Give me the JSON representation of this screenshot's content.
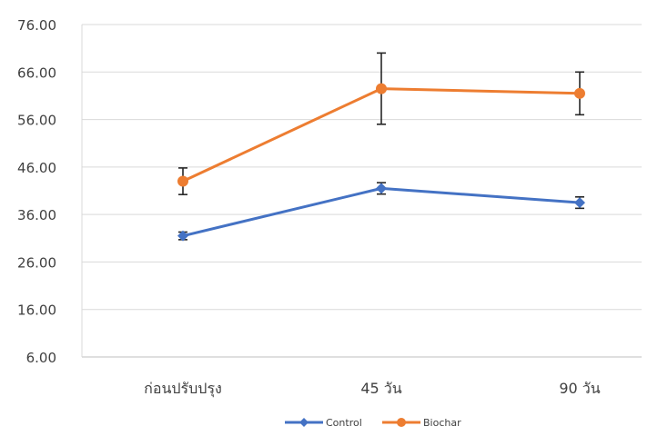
{
  "chart_data": {
    "type": "line",
    "categories": [
      "ก่อนปรับปรุง",
      "45 วัน",
      "90 วัน"
    ],
    "series": [
      {
        "name": "Control",
        "color": "#4472C4",
        "marker": "diamond",
        "values": [
          31.5,
          41.5,
          38.5
        ],
        "error": [
          0.8,
          1.2,
          1.2
        ]
      },
      {
        "name": "Biochar",
        "color": "#ED7D31",
        "marker": "circle",
        "values": [
          43.0,
          62.5,
          61.5
        ],
        "error": [
          2.8,
          7.5,
          4.5
        ]
      }
    ],
    "ylim": [
      6.0,
      76.0
    ],
    "yticks": [
      "6.00",
      "16.00",
      "26.00",
      "36.00",
      "46.00",
      "56.00",
      "66.00",
      "76.00"
    ],
    "grid": true,
    "legend": "bottom-center",
    "title": "",
    "xlabel": "",
    "ylabel": ""
  }
}
